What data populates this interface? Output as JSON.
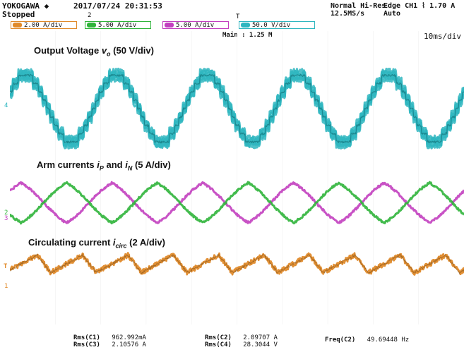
{
  "header": {
    "brand": "YOKOGAWA ◆",
    "datetime": "2017/07/24 20:31:53",
    "status": "Stopped",
    "marker_2": "2",
    "trigger_mark": "T",
    "mode_line1": "Normal Hi-Res",
    "mode_line2": "12.5MS/s",
    "trig_line1": "Edge CH1 ⌇ 1.70 A",
    "trig_line2": "Auto"
  },
  "channels": [
    {
      "id": "1",
      "label": "2.00 A/div",
      "color": "#e08a2a"
    },
    {
      "id": "2",
      "label": "5.00 A/div",
      "color": "#2fb43a"
    },
    {
      "id": "3",
      "label": "5.00 A/div",
      "color": "#c23fbf"
    },
    {
      "id": "4",
      "label": "50.0 V/div",
      "color": "#2fb6c0"
    }
  ],
  "zoom": {
    "main": "Main : 1.25 M",
    "timebase": "10ms/div"
  },
  "side_markers": {
    "ch4": "4",
    "ch2": "2",
    "ch3": "3",
    "trig_level": "T",
    "ch1": "1"
  },
  "chart_data": {
    "type": "line",
    "timebase_ms_per_div": 10,
    "time_range_ms": [
      0,
      100
    ],
    "frequency_hz": 49.69448,
    "series": [
      {
        "name": "Output Voltage vo (50 V/div)",
        "channel": 4,
        "color": "#2fb6c0",
        "shape": "staircase sine",
        "amplitude_div": 1.4,
        "cycles": 5
      },
      {
        "name": "Arm currents iP (5 A/div)",
        "channel": 3,
        "color": "#c23fbf",
        "shape": "triangle-like sine",
        "amplitude_div": 0.75,
        "cycles": 5
      },
      {
        "name": "Arm currents iN (5 A/div)",
        "channel": 2,
        "color": "#2fb43a",
        "shape": "triangle-like sine (inverted)",
        "amplitude_div": 0.75,
        "cycles": 5
      },
      {
        "name": "Circulating current icirc (2 A/div)",
        "channel": 1,
        "color": "#e08a2a",
        "shape": "sawtooth ripple",
        "amplitude_div": 0.5,
        "cycles": 10
      }
    ],
    "annotations": {
      "voltage": {
        "pre": "Output Voltage ",
        "var": "v",
        "sub": "o",
        "post": " (50 V/div)",
        "color": "#1f5fa8"
      },
      "arm": {
        "pre": "Arm currents ",
        "var1": "i",
        "sub1": "P",
        "mid": " and ",
        "var2": "i",
        "sub2": "N",
        "post": " (5 A/div)",
        "color": "#b1359c"
      },
      "circ": {
        "pre": "Circulating current ",
        "var": "i",
        "sub": "circ",
        "post": " (2 A/div)",
        "color": "#d98b1a"
      }
    }
  },
  "measurements": {
    "rms_c1_label": "Rms(C1)",
    "rms_c1_value": "962.992mA",
    "rms_c3_label": "Rms(C3)",
    "rms_c3_value": "2.10576 A",
    "rms_c2_label": "Rms(C2)",
    "rms_c2_value": "2.09707 A",
    "rms_c4_label": "Rms(C4)",
    "rms_c4_value": "28.3044 V",
    "freq_label": "Freq(C2)",
    "freq_value": "49.69448 Hz"
  }
}
